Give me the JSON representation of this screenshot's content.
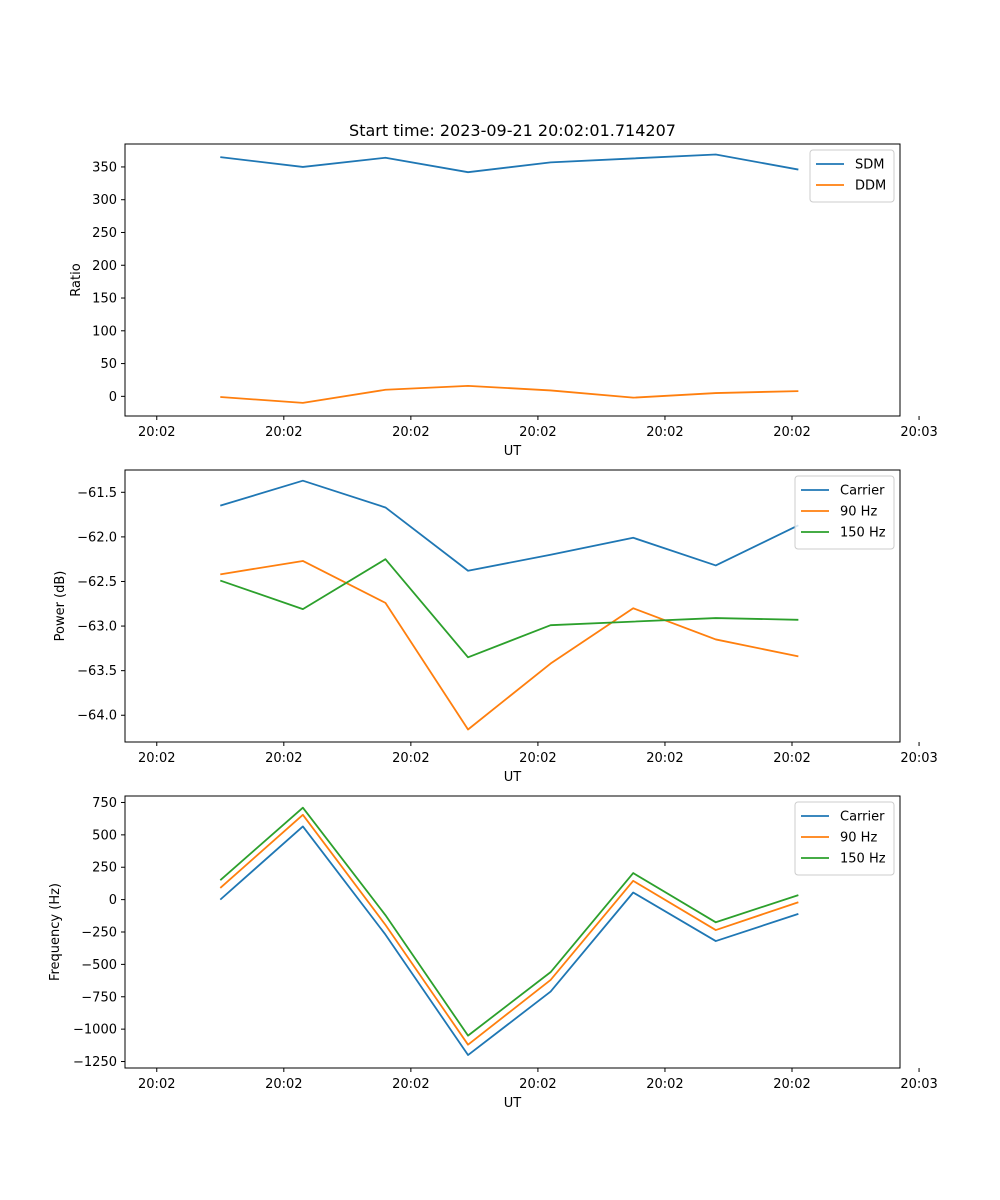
{
  "figure_title": "Start time: 2023-09-21 20:02:01.714207",
  "chart_data": [
    {
      "type": "line",
      "id": "ratio",
      "title": "Start time: 2023-09-21 20:02:01.714207",
      "xlabel": "UT",
      "ylabel": "Ratio",
      "xlim": [
        -0.5,
        11.7
      ],
      "ylim": [
        -30,
        385
      ],
      "x_ticks": [
        0,
        2,
        4,
        6,
        8,
        10,
        12
      ],
      "x_tick_labels": [
        "20:02",
        "20:02",
        "20:02",
        "20:02",
        "20:02",
        "20:02",
        "20:03"
      ],
      "y_ticks": [
        0,
        50,
        100,
        150,
        200,
        250,
        300,
        350
      ],
      "y_tick_labels": [
        "0",
        "50",
        "100",
        "150",
        "200",
        "250",
        "300",
        "350"
      ],
      "x": [
        1,
        2.3,
        3.6,
        4.9,
        6.2,
        7.5,
        8.8,
        10.1
      ],
      "series": [
        {
          "name": "SDM",
          "color": "#1f77b4",
          "values": [
            365,
            350,
            364,
            342,
            357,
            363,
            369,
            346
          ]
        },
        {
          "name": "DDM",
          "color": "#ff7f0e",
          "values": [
            -1,
            -10,
            10,
            16,
            9,
            -2,
            5,
            8
          ]
        }
      ],
      "legend": "upper right"
    },
    {
      "type": "line",
      "id": "power",
      "title": "",
      "xlabel": "UT",
      "ylabel": "Power (dB)",
      "xlim": [
        -0.5,
        11.7
      ],
      "ylim": [
        -64.3,
        -61.25
      ],
      "x_ticks": [
        0,
        2,
        4,
        6,
        8,
        10,
        12
      ],
      "x_tick_labels": [
        "20:02",
        "20:02",
        "20:02",
        "20:02",
        "20:02",
        "20:02",
        "20:03"
      ],
      "y_ticks": [
        -64.0,
        -63.5,
        -63.0,
        -62.5,
        -62.0,
        -61.5
      ],
      "y_tick_labels": [
        "−64.0",
        "−63.5",
        "−63.0",
        "−62.5",
        "−62.0",
        "−61.5"
      ],
      "x": [
        1,
        2.3,
        3.6,
        4.9,
        6.2,
        7.5,
        8.8,
        10.1
      ],
      "series": [
        {
          "name": "Carrier",
          "color": "#1f77b4",
          "values": [
            -61.65,
            -61.37,
            -61.67,
            -62.38,
            -62.2,
            -62.01,
            -62.32,
            -61.87
          ]
        },
        {
          "name": "90 Hz",
          "color": "#ff7f0e",
          "values": [
            -62.42,
            -62.27,
            -62.74,
            -64.16,
            -63.42,
            -62.8,
            -63.15,
            -63.34
          ]
        },
        {
          "name": "150 Hz",
          "color": "#2ca02c",
          "values": [
            -62.49,
            -62.81,
            -62.25,
            -63.35,
            -62.99,
            -62.95,
            -62.91,
            -62.93
          ]
        }
      ],
      "legend": "upper right"
    },
    {
      "type": "line",
      "id": "frequency",
      "title": "",
      "xlabel": "UT",
      "ylabel": "Frequency (Hz)",
      "xlim": [
        -0.5,
        11.7
      ],
      "ylim": [
        -1300,
        800
      ],
      "x_ticks": [
        0,
        2,
        4,
        6,
        8,
        10,
        12
      ],
      "x_tick_labels": [
        "20:02",
        "20:02",
        "20:02",
        "20:02",
        "20:02",
        "20:02",
        "20:03"
      ],
      "y_ticks": [
        -1250,
        -1000,
        -750,
        -500,
        -250,
        0,
        250,
        500,
        750
      ],
      "y_tick_labels": [
        "−1250",
        "−1000",
        "−750",
        "−500",
        "−250",
        "0",
        "250",
        "500",
        "750"
      ],
      "x": [
        1,
        2.3,
        3.6,
        4.9,
        6.2,
        7.5,
        8.8,
        10.1
      ],
      "series": [
        {
          "name": "Carrier",
          "color": "#1f77b4",
          "values": [
            0,
            565,
            -270,
            -1200,
            -710,
            55,
            -320,
            -110
          ]
        },
        {
          "name": "90 Hz",
          "color": "#ff7f0e",
          "values": [
            90,
            655,
            -195,
            -1120,
            -620,
            145,
            -235,
            -20
          ]
        },
        {
          "name": "150 Hz",
          "color": "#2ca02c",
          "values": [
            150,
            710,
            -120,
            -1050,
            -560,
            205,
            -175,
            35
          ]
        }
      ],
      "legend": "upper right"
    }
  ]
}
